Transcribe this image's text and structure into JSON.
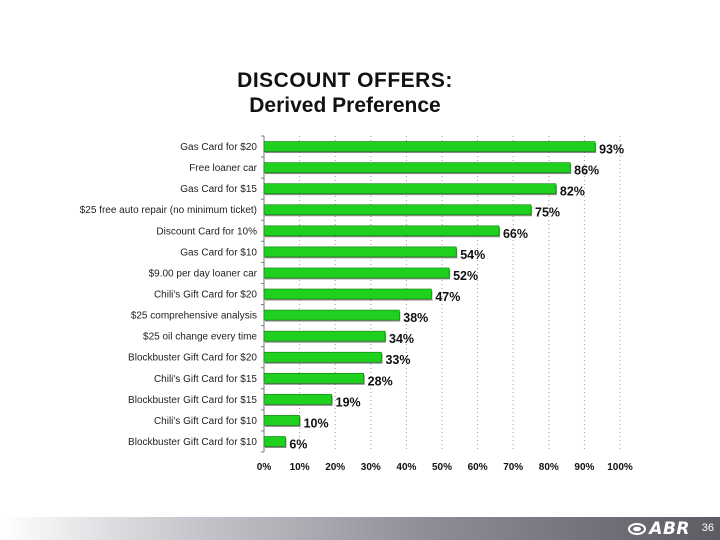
{
  "title": {
    "line1": "DISCOUNT OFFERS:",
    "line2": "Derived Preference"
  },
  "chart_data": {
    "type": "bar",
    "orientation": "horizontal",
    "title": "DISCOUNT OFFERS: Derived Preference",
    "xlabel": "",
    "ylabel": "",
    "xlim": [
      0,
      100
    ],
    "ticks": [
      0,
      10,
      20,
      30,
      40,
      50,
      60,
      70,
      80,
      90,
      100
    ],
    "tick_labels": [
      "0%",
      "10%",
      "20%",
      "30%",
      "40%",
      "50%",
      "60%",
      "70%",
      "80%",
      "90%",
      "100%"
    ],
    "grid": "vertical-dotted",
    "bar_color": "#1fd01f",
    "bars": [
      {
        "label": "Gas Card for $20",
        "value": 93,
        "display": "93%"
      },
      {
        "label": "Free loaner car",
        "value": 86,
        "display": "86%"
      },
      {
        "label": "Gas Card for $15",
        "value": 82,
        "display": "82%"
      },
      {
        "label": "$25 free auto repair (no minimum ticket)",
        "value": 75,
        "display": "75%"
      },
      {
        "label": "Discount Card for 10%",
        "value": 66,
        "display": "66%"
      },
      {
        "label": "Gas Card for $10",
        "value": 54,
        "display": "54%"
      },
      {
        "label": "$9.00 per day loaner car",
        "value": 52,
        "display": "52%"
      },
      {
        "label": "Chili's Gift Card for $20",
        "value": 47,
        "display": "47%"
      },
      {
        "label": "$25 comprehensive analysis",
        "value": 38,
        "display": "38%"
      },
      {
        "label": "$25 oil change every time",
        "value": 34,
        "display": "34%"
      },
      {
        "label": "Blockbuster Gift Card for $20",
        "value": 33,
        "display": "33%"
      },
      {
        "label": "Chili's Gift Card for $15",
        "value": 28,
        "display": "28%"
      },
      {
        "label": "Blockbuster Gift Card for $15",
        "value": 19,
        "display": "19%"
      },
      {
        "label": "Chili's Gift Card for $10",
        "value": 10,
        "display": "10%"
      },
      {
        "label": "Blockbuster Gift Card for $10",
        "value": 6,
        "display": "6%"
      }
    ]
  },
  "footer": {
    "logo_text": "ABR",
    "page_number": "36"
  }
}
